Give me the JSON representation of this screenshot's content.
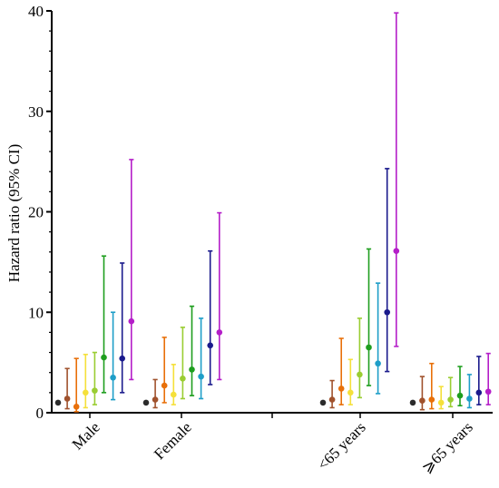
{
  "chart_data": {
    "type": "scatter",
    "subtype": "forest-plot-with-error-bars",
    "title": "",
    "xlabel": "",
    "ylabel": "Hazard ratio (95% CI)",
    "ylim": [
      0,
      40
    ],
    "yticks": [
      0,
      10,
      20,
      30,
      40
    ],
    "grid": false,
    "legend": "none",
    "categories": [
      "Male",
      "Female",
      "<65 years",
      "⩾65 years"
    ],
    "series_colors": [
      "#2b2b2b",
      "#a0522d",
      "#e8700a",
      "#f5e03a",
      "#9acd32",
      "#1e9e1e",
      "#1e9ec8",
      "#1a1a8c",
      "#b41ec8",
      "#e0186c"
    ],
    "groups": [
      {
        "category": "Male",
        "points": [
          {
            "y": 1.0,
            "low": 1.0,
            "high": 1.0
          },
          {
            "y": 1.4,
            "low": 0.4,
            "high": 4.4
          },
          {
            "y": 0.6,
            "low": 0.1,
            "high": 5.4
          },
          {
            "y": 2.0,
            "low": 0.5,
            "high": 5.8
          },
          {
            "y": 2.2,
            "low": 0.8,
            "high": 6.0
          },
          {
            "y": 5.5,
            "low": 2.0,
            "high": 15.6
          },
          {
            "y": 3.5,
            "low": 1.3,
            "high": 10.0
          },
          {
            "y": 5.4,
            "low": 2.0,
            "high": 14.9
          },
          {
            "y": 9.1,
            "low": 3.3,
            "high": 25.2
          }
        ]
      },
      {
        "category": "Female",
        "points": [
          {
            "y": 1.0,
            "low": 1.0,
            "high": 1.0
          },
          {
            "y": 1.3,
            "low": 0.5,
            "high": 3.3
          },
          {
            "y": 2.7,
            "low": 1.0,
            "high": 7.5
          },
          {
            "y": 1.8,
            "low": 0.8,
            "high": 4.8
          },
          {
            "y": 3.4,
            "low": 1.4,
            "high": 8.5
          },
          {
            "y": 4.3,
            "low": 1.7,
            "high": 10.6
          },
          {
            "y": 3.6,
            "low": 1.4,
            "high": 9.4
          },
          {
            "y": 6.7,
            "low": 2.8,
            "high": 16.1
          },
          {
            "y": 8.0,
            "low": 3.3,
            "high": 19.9
          }
        ]
      },
      {
        "category": "<65 years",
        "points": [
          {
            "y": 1.0,
            "low": 1.0,
            "high": 1.0
          },
          {
            "y": 1.3,
            "low": 0.5,
            "high": 3.2
          },
          {
            "y": 2.4,
            "low": 0.8,
            "high": 7.4
          },
          {
            "y": 2.0,
            "low": 0.8,
            "high": 5.3
          },
          {
            "y": 3.8,
            "low": 1.5,
            "high": 9.4
          },
          {
            "y": 6.5,
            "low": 2.7,
            "high": 16.3
          },
          {
            "y": 4.9,
            "low": 1.9,
            "high": 12.9
          },
          {
            "y": 10.0,
            "low": 4.1,
            "high": 24.3
          },
          {
            "y": 16.1,
            "low": 6.6,
            "high": 39.8
          }
        ]
      },
      {
        "category": "⩾65 years",
        "points": [
          {
            "y": 1.0,
            "low": 1.0,
            "high": 1.0
          },
          {
            "y": 1.2,
            "low": 0.3,
            "high": 3.6
          },
          {
            "y": 1.3,
            "low": 0.4,
            "high": 4.9
          },
          {
            "y": 1.0,
            "low": 0.4,
            "high": 2.6
          },
          {
            "y": 1.3,
            "low": 0.6,
            "high": 3.5
          },
          {
            "y": 1.7,
            "low": 0.7,
            "high": 4.6
          },
          {
            "y": 1.4,
            "low": 0.5,
            "high": 3.8
          },
          {
            "y": 2.0,
            "low": 0.8,
            "high": 5.6
          },
          {
            "y": 2.1,
            "low": 0.8,
            "high": 5.9
          }
        ]
      }
    ]
  }
}
